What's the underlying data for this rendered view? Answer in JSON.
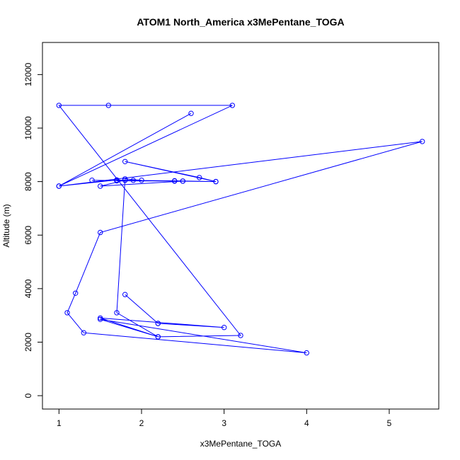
{
  "chart_data": {
    "type": "line",
    "title": "ATOM1 North_America x3MePentane_TOGA",
    "xlabel": "x3MePentane_TOGA",
    "ylabel": "Altitude (m)",
    "xlim": [
      0.8,
      5.6
    ],
    "ylim": [
      -500,
      13200
    ],
    "xticks": [
      1,
      2,
      3,
      4,
      5
    ],
    "yticks": [
      0,
      2000,
      4000,
      6000,
      8000,
      10000,
      12000
    ],
    "grid": false,
    "color": "#0000ff",
    "series": [
      {
        "points": [
          [
            2.2,
            2700
          ],
          [
            3.0,
            2550
          ],
          [
            1.5,
            2900
          ],
          [
            2.2,
            2200
          ],
          [
            1.7,
            3100
          ],
          [
            1.8,
            8100
          ],
          [
            2.0,
            8050
          ],
          [
            1.9,
            8050
          ],
          [
            1.8,
            8050
          ],
          [
            1.7,
            8050
          ],
          [
            2.4,
            8020
          ],
          [
            1.7,
            8030
          ],
          [
            2.5,
            8020
          ],
          [
            1.4,
            8050
          ],
          [
            2.9,
            8000
          ],
          [
            2.7,
            8150
          ],
          [
            1.8,
            8750
          ],
          [
            2.9,
            8000
          ],
          [
            2.4,
            8030
          ],
          [
            1.7,
            8050
          ],
          [
            2.5,
            8020
          ],
          [
            1.5,
            7830
          ],
          [
            1.8,
            8050
          ],
          [
            1.7,
            8060
          ],
          [
            1.0,
            7830
          ],
          [
            5.4,
            9500
          ],
          [
            1.5,
            6100
          ],
          [
            1.2,
            3830
          ],
          [
            1.1,
            3100
          ],
          [
            1.3,
            2350
          ],
          [
            4.0,
            1600
          ],
          [
            1.5,
            2850
          ],
          [
            2.2,
            2200
          ],
          [
            3.2,
            2250
          ],
          [
            1.0,
            10850
          ],
          [
            1.6,
            10850
          ],
          [
            3.1,
            10850
          ],
          [
            1.0,
            7830
          ],
          [
            2.6,
            10550
          ]
        ]
      },
      {
        "points": [
          [
            1.8,
            3780
          ],
          [
            2.2,
            2700
          ]
        ]
      }
    ]
  }
}
